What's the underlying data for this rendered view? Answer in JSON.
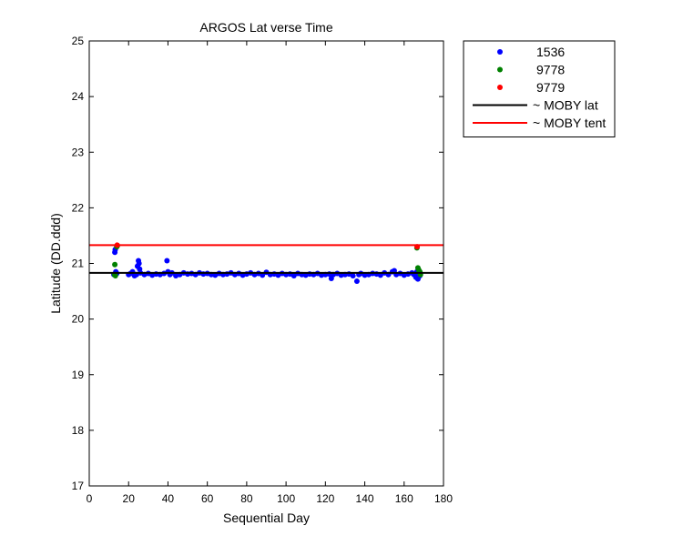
{
  "chart_data": {
    "type": "scatter",
    "title": "ARGOS Lat verse Time",
    "xlabel": "Sequential Day",
    "ylabel": "Latitude (DD.ddd)",
    "xlim": [
      0,
      180
    ],
    "ylim": [
      17,
      25
    ],
    "xticks": [
      0,
      20,
      40,
      60,
      80,
      100,
      120,
      140,
      160,
      180
    ],
    "yticks": [
      17,
      18,
      19,
      20,
      21,
      22,
      23,
      24,
      25
    ],
    "grid": false,
    "legend_position": "outside-top-right",
    "series": [
      {
        "name": "1536",
        "kind": "points",
        "color": "#0000ff",
        "points": [
          [
            12.5,
            20.8
          ],
          [
            13,
            21.2
          ],
          [
            13.2,
            21.25
          ],
          [
            13.5,
            20.85
          ],
          [
            14,
            20.82
          ],
          [
            20,
            20.8
          ],
          [
            21,
            20.82
          ],
          [
            22,
            20.85
          ],
          [
            23,
            20.78
          ],
          [
            24,
            20.8
          ],
          [
            24.5,
            20.95
          ],
          [
            25,
            21.05
          ],
          [
            25.3,
            21.0
          ],
          [
            25.6,
            20.9
          ],
          [
            26,
            20.83
          ],
          [
            28,
            20.8
          ],
          [
            30,
            20.82
          ],
          [
            32,
            20.79
          ],
          [
            34,
            20.81
          ],
          [
            36,
            20.8
          ],
          [
            38,
            20.82
          ],
          [
            39.5,
            21.05
          ],
          [
            40,
            20.85
          ],
          [
            41,
            20.8
          ],
          [
            42,
            20.83
          ],
          [
            44,
            20.78
          ],
          [
            46,
            20.8
          ],
          [
            48,
            20.83
          ],
          [
            50,
            20.81
          ],
          [
            52,
            20.82
          ],
          [
            54,
            20.8
          ],
          [
            56,
            20.83
          ],
          [
            58,
            20.81
          ],
          [
            60,
            20.82
          ],
          [
            62,
            20.8
          ],
          [
            64,
            20.79
          ],
          [
            66,
            20.82
          ],
          [
            68,
            20.8
          ],
          [
            70,
            20.81
          ],
          [
            72,
            20.83
          ],
          [
            74,
            20.8
          ],
          [
            76,
            20.82
          ],
          [
            78,
            20.79
          ],
          [
            80,
            20.81
          ],
          [
            82,
            20.83
          ],
          [
            84,
            20.8
          ],
          [
            86,
            20.82
          ],
          [
            88,
            20.79
          ],
          [
            90,
            20.84
          ],
          [
            92,
            20.8
          ],
          [
            94,
            20.81
          ],
          [
            96,
            20.79
          ],
          [
            98,
            20.82
          ],
          [
            100,
            20.8
          ],
          [
            102,
            20.81
          ],
          [
            104,
            20.78
          ],
          [
            106,
            20.82
          ],
          [
            108,
            20.8
          ],
          [
            110,
            20.79
          ],
          [
            112,
            20.81
          ],
          [
            114,
            20.8
          ],
          [
            116,
            20.82
          ],
          [
            118,
            20.79
          ],
          [
            120,
            20.8
          ],
          [
            122,
            20.81
          ],
          [
            123,
            20.73
          ],
          [
            124,
            20.8
          ],
          [
            126,
            20.82
          ],
          [
            128,
            20.79
          ],
          [
            130,
            20.8
          ],
          [
            132,
            20.81
          ],
          [
            134,
            20.78
          ],
          [
            136,
            20.68
          ],
          [
            137,
            20.8
          ],
          [
            138,
            20.82
          ],
          [
            140,
            20.79
          ],
          [
            142,
            20.8
          ],
          [
            144,
            20.82
          ],
          [
            146,
            20.81
          ],
          [
            148,
            20.79
          ],
          [
            150,
            20.83
          ],
          [
            152,
            20.8
          ],
          [
            154,
            20.85
          ],
          [
            155,
            20.87
          ],
          [
            156,
            20.8
          ],
          [
            158,
            20.82
          ],
          [
            160,
            20.79
          ],
          [
            162,
            20.81
          ],
          [
            164,
            20.83
          ],
          [
            165,
            20.8
          ],
          [
            166,
            20.75
          ],
          [
            166.5,
            20.85
          ],
          [
            167,
            20.72
          ],
          [
            167.5,
            20.8
          ],
          [
            168,
            20.78
          ]
        ]
      },
      {
        "name": "9778",
        "kind": "points",
        "color": "#008000",
        "points": [
          [
            12.8,
            20.8
          ],
          [
            13,
            20.98
          ],
          [
            13.3,
            20.78
          ],
          [
            14,
            21.3
          ],
          [
            14.3,
            21.32
          ],
          [
            166.5,
            21.28
          ],
          [
            167,
            20.92
          ],
          [
            167.5,
            20.88
          ],
          [
            168,
            20.85
          ],
          [
            168.3,
            20.8
          ]
        ]
      },
      {
        "name": "9779",
        "kind": "points",
        "color": "#ff0000",
        "points": [
          [
            14.2,
            21.33
          ],
          [
            166.6,
            21.3
          ]
        ]
      },
      {
        "name": "~ MOBY lat",
        "kind": "hline",
        "color": "#000000",
        "y": 20.83
      },
      {
        "name": "~ MOBY tent",
        "kind": "hline",
        "color": "#ff0000",
        "y": 21.33
      }
    ]
  }
}
